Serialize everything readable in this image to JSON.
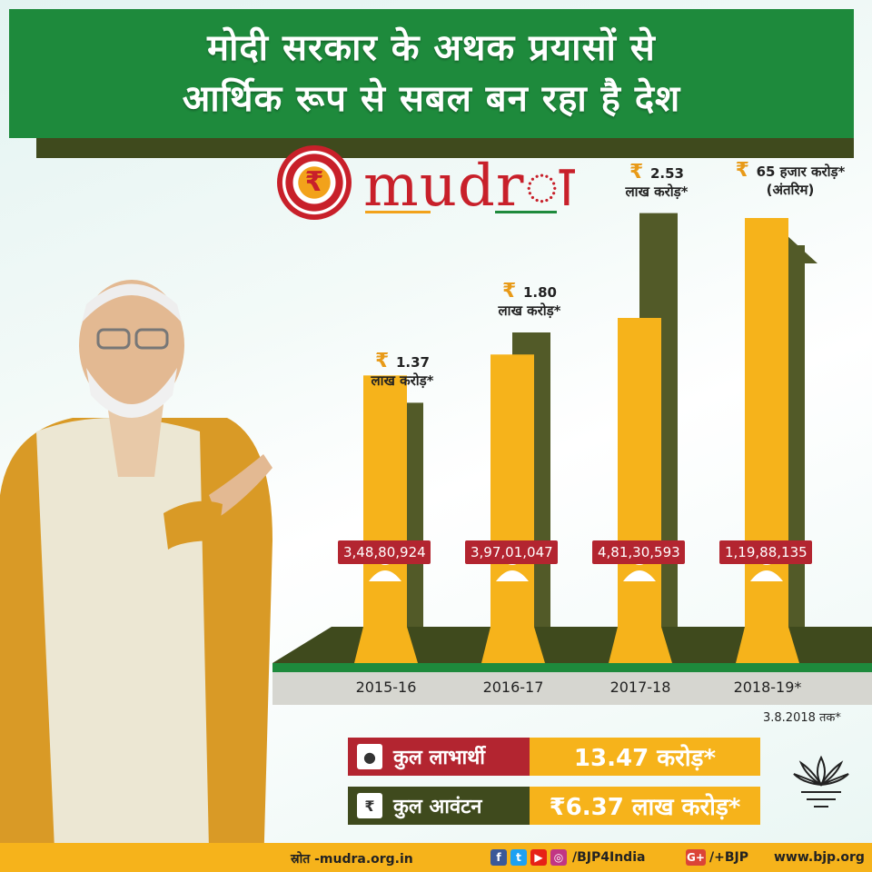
{
  "header": {
    "line1": "मोदी सरकार के अथक प्रयासों से",
    "line2": "आर्थिक रूप से सबल बन रहा है देश"
  },
  "logo": {
    "symbol": "₹",
    "word": "mudrा"
  },
  "chart_data": {
    "type": "bar",
    "categories": [
      "2015-16",
      "2016-17",
      "2017-18",
      "2018-19*"
    ],
    "series": [
      {
        "values_lakh_crore": [
          1.37,
          1.8,
          2.53,
          0.65
        ],
        "value_labels": [
          "1.37",
          "1.80",
          "2.53",
          "65 हजार करोड़*"
        ],
        "unit_labels": [
          "लाख करोड़*",
          "लाख करोड़*",
          "लाख करोड़*",
          "(अंतरिम)"
        ]
      },
      {
        "values": [
          34880924,
          39701047,
          48130593,
          11988135
        ],
        "labels": [
          "3,48,80,924",
          "3,97,01,047",
          "4,81,30,593",
          "1,19,88,135"
        ]
      }
    ],
    "currency_symbol": "₹",
    "note": "3.8.2018 तक*"
  },
  "totals": {
    "beneficiaries_label": "कुल लाभार्थी",
    "beneficiaries_value": "13.47 करोड़*",
    "allocation_label": "कुल आवंटन",
    "allocation_value": "₹6.37 लाख करोड़*"
  },
  "footer": {
    "source": "स्रोत -mudra.org.in",
    "handle": "/BJP4India",
    "gplus": "/+BJP",
    "website": "www.bjp.org"
  },
  "colors": {
    "green": "#1e8a3c",
    "olive": "#3f4a1d",
    "yellow": "#f6b31b",
    "red": "#b32530"
  }
}
